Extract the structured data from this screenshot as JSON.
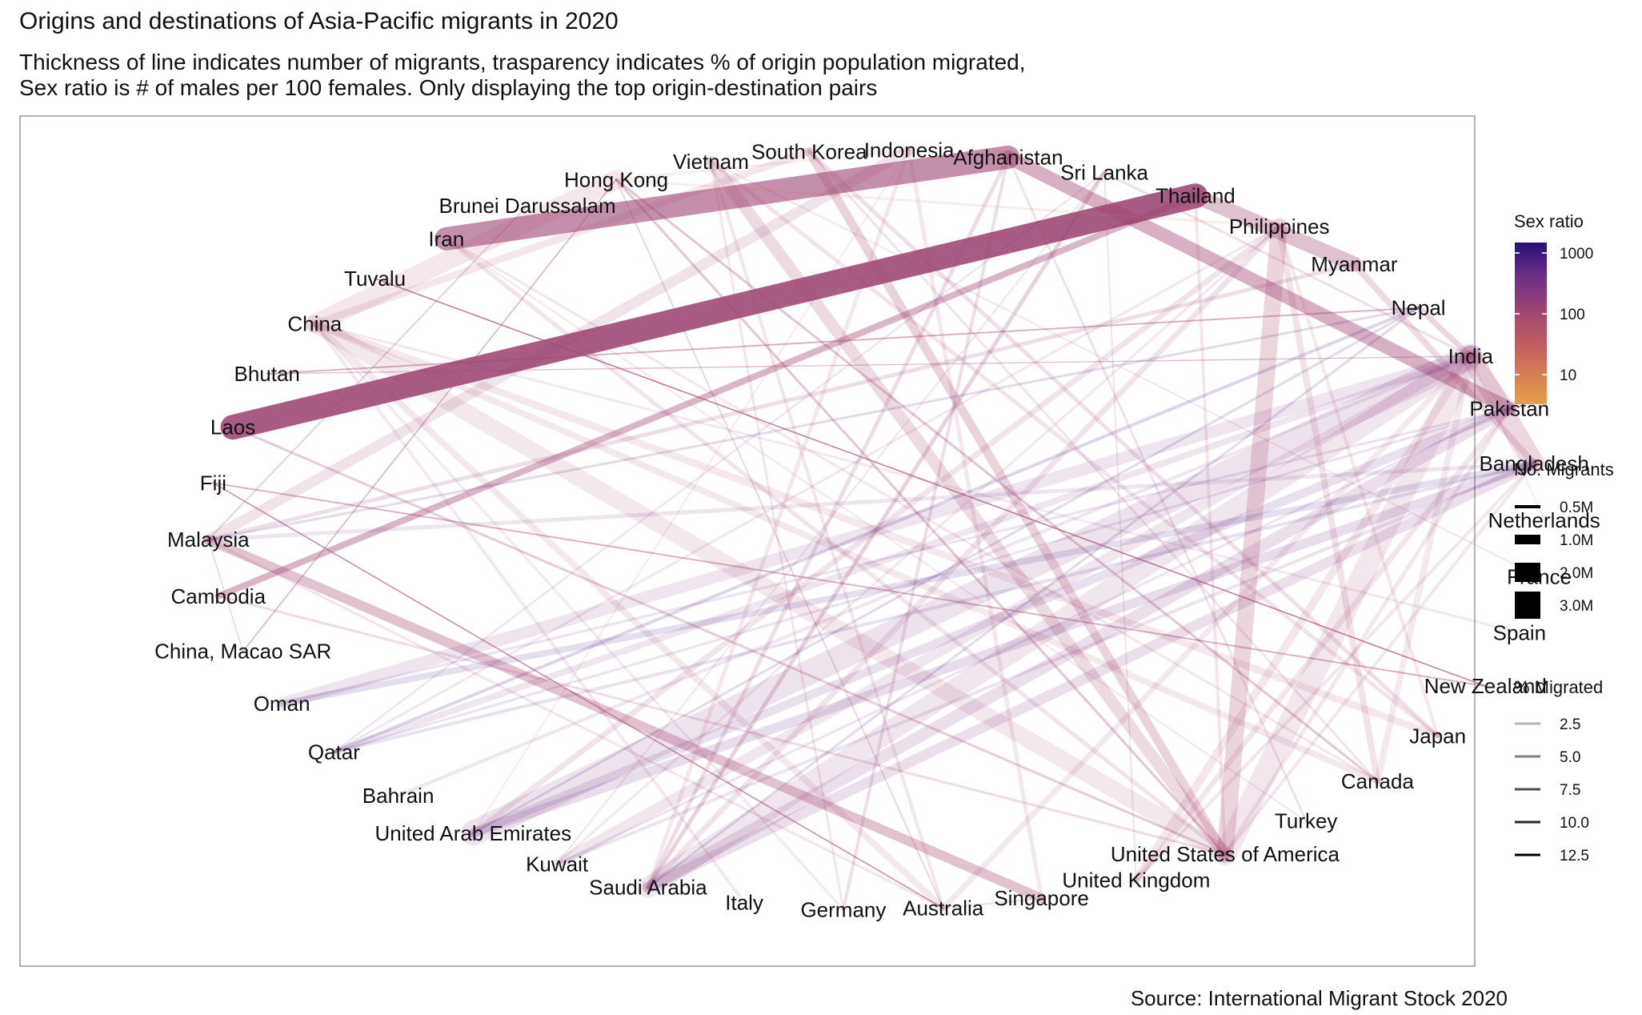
{
  "title": "Origins and destinations of Asia-Pacific migrants in 2020",
  "subtitle_line1": "Thickness of line indicates number of migrants, trasparency indicates % of origin population migrated,",
  "subtitle_line2": "Sex ratio is # of males per 100 females. Only displaying the top origin-destination pairs",
  "caption": "Source: International Migrant Stock 2020",
  "legend": {
    "sex_ratio_title": "Sex ratio",
    "sex_ratio_ticks": [
      "1000",
      "100",
      "10"
    ],
    "migrants_title": "No. Migrants",
    "migrants_ticks": [
      "0.5M",
      "1.0M",
      "2.0M",
      "3.0M"
    ],
    "pct_title": "% Migrated",
    "pct_ticks": [
      "2.5",
      "5.0",
      "7.5",
      "10.0",
      "12.5"
    ],
    "colors": {
      "low": "#e8a048",
      "mid": "#b04a6e",
      "high": "#2a1378"
    }
  },
  "chart_data": {
    "type": "network",
    "nodes": [
      "Vietnam",
      "South Korea",
      "Indonesia",
      "Afghanistan",
      "Sri Lanka",
      "Thailand",
      "Philippines",
      "Myanmar",
      "Nepal",
      "India",
      "Pakistan",
      "Bangladesh",
      "Netherlands",
      "France",
      "Spain",
      "New Zealand",
      "Japan",
      "Canada",
      "Turkey",
      "United States of America",
      "United Kingdom",
      "Singapore",
      "Australia",
      "Germany",
      "Italy",
      "Saudi Arabia",
      "Kuwait",
      "United Arab Emirates",
      "Bahrain",
      "Qatar",
      "Oman",
      "China, Macao SAR",
      "Cambodia",
      "Malaysia",
      "Fiji",
      "Laos",
      "Bhutan",
      "China",
      "Tuvalu",
      "Iran",
      "Brunei Darussalam",
      "Hong Kong"
    ],
    "edges": [
      {
        "from": "Laos",
        "to": "Thailand",
        "migrants_m": 3.0,
        "pct": 12.5,
        "sex_ratio": 120
      },
      {
        "from": "Afghanistan",
        "to": "Iran",
        "migrants_m": 2.8,
        "pct": 8.0,
        "sex_ratio": 110
      },
      {
        "from": "Afghanistan",
        "to": "Pakistan",
        "migrants_m": 1.6,
        "pct": 5.0,
        "sex_ratio": 105
      },
      {
        "from": "Myanmar",
        "to": "Thailand",
        "migrants_m": 1.8,
        "pct": 3.5,
        "sex_ratio": 110
      },
      {
        "from": "Cambodia",
        "to": "Thailand",
        "migrants_m": 0.7,
        "pct": 4.5,
        "sex_ratio": 120
      },
      {
        "from": "Indonesia",
        "to": "Malaysia",
        "migrants_m": 1.2,
        "pct": 0.5,
        "sex_ratio": 110
      },
      {
        "from": "Indonesia",
        "to": "Saudi Arabia",
        "migrants_m": 0.4,
        "pct": 0.2,
        "sex_ratio": 60
      },
      {
        "from": "Malaysia",
        "to": "Singapore",
        "migrants_m": 1.1,
        "pct": 3.5,
        "sex_ratio": 90
      },
      {
        "from": "China",
        "to": "United States of America",
        "migrants_m": 2.0,
        "pct": 0.2,
        "sex_ratio": 80
      },
      {
        "from": "China",
        "to": "Hong Kong",
        "migrants_m": 2.3,
        "pct": 0.2,
        "sex_ratio": 70
      },
      {
        "from": "China",
        "to": "Canada",
        "migrants_m": 0.7,
        "pct": 0.1,
        "sex_ratio": 80
      },
      {
        "from": "China",
        "to": "Australia",
        "migrants_m": 0.7,
        "pct": 0.1,
        "sex_ratio": 80
      },
      {
        "from": "India",
        "to": "United Arab Emirates",
        "migrants_m": 3.0,
        "pct": 0.3,
        "sex_ratio": 250
      },
      {
        "from": "India",
        "to": "United States of America",
        "migrants_m": 2.7,
        "pct": 0.2,
        "sex_ratio": 110
      },
      {
        "from": "India",
        "to": "Saudi Arabia",
        "migrants_m": 2.5,
        "pct": 0.2,
        "sex_ratio": 200
      },
      {
        "from": "India",
        "to": "Oman",
        "migrants_m": 1.4,
        "pct": 0.1,
        "sex_ratio": 300
      },
      {
        "from": "India",
        "to": "Kuwait",
        "migrants_m": 1.2,
        "pct": 0.1,
        "sex_ratio": 200
      },
      {
        "from": "India",
        "to": "Qatar",
        "migrants_m": 0.7,
        "pct": 0.1,
        "sex_ratio": 300
      },
      {
        "from": "India",
        "to": "Pakistan",
        "migrants_m": 1.6,
        "pct": 0.1,
        "sex_ratio": 100
      },
      {
        "from": "Bangladesh",
        "to": "India",
        "migrants_m": 2.5,
        "pct": 1.5,
        "sex_ratio": 100
      },
      {
        "from": "Bangladesh",
        "to": "Saudi Arabia",
        "migrants_m": 1.2,
        "pct": 0.7,
        "sex_ratio": 250
      },
      {
        "from": "Bangladesh",
        "to": "United Arab Emirates",
        "migrants_m": 1.1,
        "pct": 0.7,
        "sex_ratio": 400
      },
      {
        "from": "Pakistan",
        "to": "Saudi Arabia",
        "migrants_m": 1.4,
        "pct": 0.6,
        "sex_ratio": 250
      },
      {
        "from": "Pakistan",
        "to": "United Arab Emirates",
        "migrants_m": 1.0,
        "pct": 0.5,
        "sex_ratio": 400
      },
      {
        "from": "Philippines",
        "to": "United States of America",
        "migrants_m": 2.0,
        "pct": 1.8,
        "sex_ratio": 70
      },
      {
        "from": "Philippines",
        "to": "Saudi Arabia",
        "migrants_m": 0.6,
        "pct": 0.5,
        "sex_ratio": 120
      },
      {
        "from": "Vietnam",
        "to": "United States of America",
        "migrants_m": 1.4,
        "pct": 1.4,
        "sex_ratio": 90
      },
      {
        "from": "South Korea",
        "to": "United States of America",
        "migrants_m": 1.0,
        "pct": 2.0,
        "sex_ratio": 75
      },
      {
        "from": "Nepal",
        "to": "India",
        "migrants_m": 0.6,
        "pct": 2.0,
        "sex_ratio": 60
      },
      {
        "from": "Sri Lanka",
        "to": "Saudi Arabia",
        "migrants_m": 0.4,
        "pct": 1.8,
        "sex_ratio": 150
      },
      {
        "from": "India",
        "to": "United Kingdom",
        "migrants_m": 0.9,
        "pct": 0.1,
        "sex_ratio": 100
      },
      {
        "from": "Pakistan",
        "to": "United Kingdom",
        "migrants_m": 0.6,
        "pct": 0.3,
        "sex_ratio": 100
      },
      {
        "from": "China",
        "to": "Japan",
        "migrants_m": 0.8,
        "pct": 0.1,
        "sex_ratio": 70
      },
      {
        "from": "China",
        "to": "South Korea",
        "migrants_m": 0.8,
        "pct": 0.1,
        "sex_ratio": 100
      },
      {
        "from": "Myanmar",
        "to": "Malaysia",
        "migrants_m": 0.4,
        "pct": 0.8,
        "sex_ratio": 150
      },
      {
        "from": "Bangladesh",
        "to": "Malaysia",
        "migrants_m": 0.4,
        "pct": 0.2,
        "sex_ratio": 300
      },
      {
        "from": "Indonesia",
        "to": "Singapore",
        "migrants_m": 0.4,
        "pct": 0.1,
        "sex_ratio": 80
      },
      {
        "from": "Philippines",
        "to": "United Arab Emirates",
        "migrants_m": 0.6,
        "pct": 0.5,
        "sex_ratio": 130
      },
      {
        "from": "Nepal",
        "to": "Qatar",
        "migrants_m": 0.3,
        "pct": 1.0,
        "sex_ratio": 900
      },
      {
        "from": "Afghanistan",
        "to": "Saudi Arabia",
        "migrants_m": 0.4,
        "pct": 1.0,
        "sex_ratio": 140
      },
      {
        "from": "Iran",
        "to": "United States of America",
        "migrants_m": 0.4,
        "pct": 0.5,
        "sex_ratio": 100
      },
      {
        "from": "Fiji",
        "to": "New Zealand",
        "migrants_m": 0.1,
        "pct": 5.0,
        "sex_ratio": 90
      },
      {
        "from": "Tuvalu",
        "to": "New Zealand",
        "migrants_m": 0.05,
        "pct": 10.0,
        "sex_ratio": 90
      },
      {
        "from": "China, Macao SAR",
        "to": "Hong Kong",
        "migrants_m": 0.05,
        "pct": 5.0,
        "sex_ratio": 90
      },
      {
        "from": "Brunei Darussalam",
        "to": "Malaysia",
        "migrants_m": 0.05,
        "pct": 3.0,
        "sex_ratio": 100
      },
      {
        "from": "Bhutan",
        "to": "Nepal",
        "migrants_m": 0.1,
        "pct": 5.0,
        "sex_ratio": 100
      },
      {
        "from": "Vietnam",
        "to": "Australia",
        "migrants_m": 0.3,
        "pct": 0.3,
        "sex_ratio": 80
      },
      {
        "from": "Philippines",
        "to": "Canada",
        "migrants_m": 0.7,
        "pct": 0.6,
        "sex_ratio": 70
      },
      {
        "from": "Philippines",
        "to": "Japan",
        "migrants_m": 0.3,
        "pct": 0.3,
        "sex_ratio": 30
      },
      {
        "from": "Vietnam",
        "to": "Japan",
        "migrants_m": 0.4,
        "pct": 0.4,
        "sex_ratio": 110
      },
      {
        "from": "India",
        "to": "Canada",
        "migrants_m": 0.7,
        "pct": 0.05,
        "sex_ratio": 100
      },
      {
        "from": "India",
        "to": "Australia",
        "migrants_m": 0.6,
        "pct": 0.05,
        "sex_ratio": 110
      },
      {
        "from": "Pakistan",
        "to": "Oman",
        "migrants_m": 0.2,
        "pct": 0.1,
        "sex_ratio": 500
      },
      {
        "from": "Bangladesh",
        "to": "Kuwait",
        "migrants_m": 0.3,
        "pct": 0.2,
        "sex_ratio": 400
      },
      {
        "from": "Bangladesh",
        "to": "Oman",
        "migrants_m": 0.7,
        "pct": 0.4,
        "sex_ratio": 900
      },
      {
        "from": "Bangladesh",
        "to": "Qatar",
        "migrants_m": 0.3,
        "pct": 0.2,
        "sex_ratio": 900
      },
      {
        "from": "India",
        "to": "Bahrain",
        "migrants_m": 0.3,
        "pct": 0.02,
        "sex_ratio": 300
      },
      {
        "from": "South Korea",
        "to": "Japan",
        "migrants_m": 0.4,
        "pct": 0.8,
        "sex_ratio": 90
      },
      {
        "from": "Indonesia",
        "to": "Hong Kong",
        "migrants_m": 0.2,
        "pct": 0.1,
        "sex_ratio": 10
      },
      {
        "from": "Philippines",
        "to": "Hong Kong",
        "migrants_m": 0.2,
        "pct": 0.2,
        "sex_ratio": 10
      },
      {
        "from": "Sri Lanka",
        "to": "Kuwait",
        "migrants_m": 0.1,
        "pct": 0.5,
        "sex_ratio": 70
      },
      {
        "from": "Nepal",
        "to": "Malaysia",
        "migrants_m": 0.2,
        "pct": 0.7,
        "sex_ratio": 900
      },
      {
        "from": "Laos",
        "to": "United States of America",
        "migrants_m": 0.2,
        "pct": 2.5,
        "sex_ratio": 90
      },
      {
        "from": "Cambodia",
        "to": "United States of America",
        "migrants_m": 0.2,
        "pct": 1.2,
        "sex_ratio": 90
      },
      {
        "from": "Fiji",
        "to": "Australia",
        "migrants_m": 0.07,
        "pct": 7.5,
        "sex_ratio": 90
      },
      {
        "from": "China",
        "to": "Italy",
        "migrants_m": 0.3,
        "pct": 0.02,
        "sex_ratio": 100
      },
      {
        "from": "China",
        "to": "Germany",
        "migrants_m": 0.2,
        "pct": 0.02,
        "sex_ratio": 100
      },
      {
        "from": "Vietnam",
        "to": "Germany",
        "migrants_m": 0.2,
        "pct": 0.2,
        "sex_ratio": 100
      },
      {
        "from": "Afghanistan",
        "to": "Germany",
        "migrants_m": 0.3,
        "pct": 0.8,
        "sex_ratio": 150
      },
      {
        "from": "Afghanistan",
        "to": "Turkey",
        "migrants_m": 0.2,
        "pct": 0.5,
        "sex_ratio": 150
      },
      {
        "from": "Iran",
        "to": "Turkey",
        "migrants_m": 0.1,
        "pct": 0.1,
        "sex_ratio": 100
      },
      {
        "from": "India",
        "to": "Netherlands",
        "migrants_m": 0.05,
        "pct": 0.01,
        "sex_ratio": 100
      },
      {
        "from": "Vietnam",
        "to": "France",
        "migrants_m": 0.1,
        "pct": 0.1,
        "sex_ratio": 90
      },
      {
        "from": "China",
        "to": "Spain",
        "migrants_m": 0.2,
        "pct": 0.01,
        "sex_ratio": 100
      },
      {
        "from": "Sri Lanka",
        "to": "United Kingdom",
        "migrants_m": 0.1,
        "pct": 0.5,
        "sex_ratio": 100
      },
      {
        "from": "Bangladesh",
        "to": "United Kingdom",
        "migrants_m": 0.3,
        "pct": 0.2,
        "sex_ratio": 100
      },
      {
        "from": "Pakistan",
        "to": "United States of America",
        "migrants_m": 0.4,
        "pct": 0.2,
        "sex_ratio": 120
      },
      {
        "from": "Bangladesh",
        "to": "United States of America",
        "migrants_m": 0.3,
        "pct": 0.2,
        "sex_ratio": 120
      },
      {
        "from": "Nepal",
        "to": "Saudi Arabia",
        "migrants_m": 0.2,
        "pct": 0.7,
        "sex_ratio": 900
      },
      {
        "from": "Indonesia",
        "to": "United Arab Emirates",
        "migrants_m": 0.1,
        "pct": 0.05,
        "sex_ratio": 30
      },
      {
        "from": "Thailand",
        "to": "United States of America",
        "migrants_m": 0.3,
        "pct": 0.4,
        "sex_ratio": 60
      },
      {
        "from": "Malaysia",
        "to": "Australia",
        "migrants_m": 0.2,
        "pct": 0.5,
        "sex_ratio": 90
      },
      {
        "from": "Singapore",
        "to": "Australia",
        "migrants_m": 0.1,
        "pct": 1.0,
        "sex_ratio": 90
      },
      {
        "from": "Hong Kong",
        "to": "Canada",
        "migrants_m": 0.2,
        "pct": 3.0,
        "sex_ratio": 90
      },
      {
        "from": "Hong Kong",
        "to": "United States of America",
        "migrants_m": 0.2,
        "pct": 3.0,
        "sex_ratio": 90
      },
      {
        "from": "Hong Kong",
        "to": "Australia",
        "migrants_m": 0.1,
        "pct": 1.5,
        "sex_ratio": 90
      },
      {
        "from": "South Korea",
        "to": "Canada",
        "migrants_m": 0.2,
        "pct": 0.5,
        "sex_ratio": 90
      },
      {
        "from": "Iran",
        "to": "Canada",
        "migrants_m": 0.2,
        "pct": 0.2,
        "sex_ratio": 100
      },
      {
        "from": "Sri Lanka",
        "to": "India",
        "migrants_m": 0.2,
        "pct": 0.8,
        "sex_ratio": 100
      },
      {
        "from": "Pakistan",
        "to": "Kuwait",
        "migrants_m": 0.2,
        "pct": 0.1,
        "sex_ratio": 400
      },
      {
        "from": "Pakistan",
        "to": "Qatar",
        "migrants_m": 0.2,
        "pct": 0.1,
        "sex_ratio": 500
      },
      {
        "from": "Sri Lanka",
        "to": "Qatar",
        "migrants_m": 0.1,
        "pct": 0.4,
        "sex_ratio": 300
      },
      {
        "from": "Philippines",
        "to": "Qatar",
        "migrants_m": 0.2,
        "pct": 0.2,
        "sex_ratio": 120
      },
      {
        "from": "Philippines",
        "to": "Kuwait",
        "migrants_m": 0.2,
        "pct": 0.2,
        "sex_ratio": 60
      },
      {
        "from": "Myanmar",
        "to": "Bangladesh",
        "migrants_m": 0.7,
        "pct": 1.3,
        "sex_ratio": 90
      },
      {
        "from": "Nepal",
        "to": "United Arab Emirates",
        "migrants_m": 0.2,
        "pct": 0.6,
        "sex_ratio": 900
      },
      {
        "from": "China, Macao SAR",
        "to": "Malaysia",
        "migrants_m": 0.02,
        "pct": 2.5,
        "sex_ratio": 100
      },
      {
        "from": "Bhutan",
        "to": "India",
        "migrants_m": 0.03,
        "pct": 4.0,
        "sex_ratio": 100
      }
    ]
  }
}
